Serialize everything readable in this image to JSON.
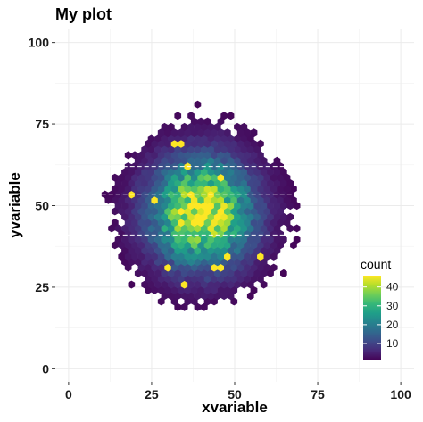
{
  "chart_data": {
    "type": "heatmap",
    "subtype": "hexbin",
    "title": "My plot",
    "xlabel": "xvariable",
    "ylabel": "yvariable",
    "xlim": [
      -4,
      104
    ],
    "ylim": [
      -4,
      104
    ],
    "x_ticks": [
      0,
      25,
      50,
      75,
      100
    ],
    "y_ticks": [
      0,
      25,
      50,
      75,
      100
    ],
    "grid": true,
    "center": {
      "x": 40,
      "y": 48
    },
    "spread": {
      "x": 13,
      "y": 14
    },
    "peak_count": 46,
    "x_extent": [
      1,
      78
    ],
    "y_extent": [
      12,
      88
    ],
    "horizontal_reference_lines_y": [
      41,
      53.5,
      62
    ],
    "reference_line_style": "white dashed",
    "legend": {
      "title": "count",
      "placement": "bottom-right",
      "ticks": [
        10,
        20,
        30,
        40
      ],
      "range": [
        1,
        46
      ]
    },
    "colormap": [
      "#440154",
      "#482878",
      "#3e4a89",
      "#31688e",
      "#26828e",
      "#1f9e89",
      "#35b779",
      "#6ece58",
      "#b5de2b",
      "#fde725"
    ]
  }
}
